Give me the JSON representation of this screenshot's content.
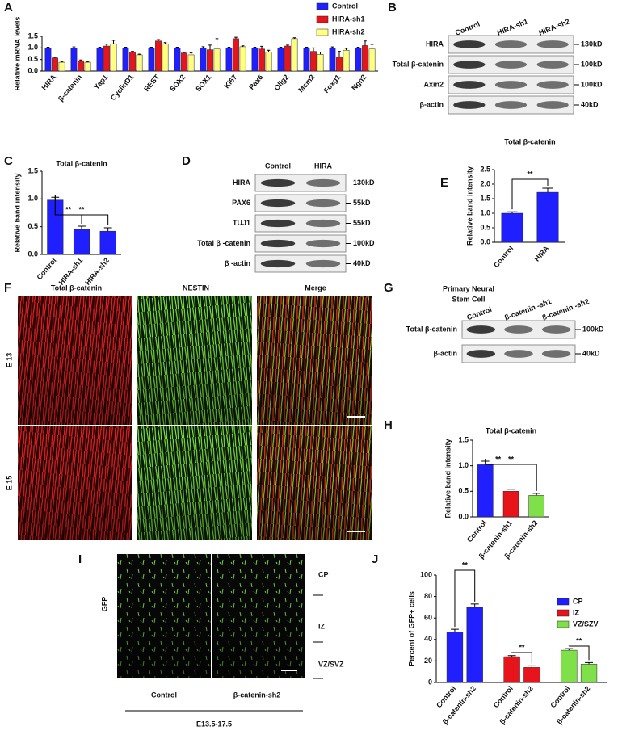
{
  "chart_data": [
    {
      "type": "bar",
      "ylabel": "Relative mRNA levels",
      "categories": [
        "HIRA",
        "β-catenin",
        "Yap1",
        "CyclinD1",
        "REST",
        "SOX2",
        "SOX1",
        "Ki67",
        "Pax6",
        "Olig2",
        "Mcm2",
        "Foxg1",
        "Ngn2"
      ],
      "series": [
        {
          "name": "Control",
          "color": "#1f1fff",
          "values": [
            1,
            1,
            1,
            1,
            1,
            1,
            1,
            1,
            1,
            1,
            1,
            1,
            1
          ],
          "errors": [
            0.03,
            0.04,
            0.03,
            0.03,
            0.03,
            0.03,
            0.05,
            0.03,
            0.03,
            0.03,
            0.03,
            0.04,
            0.03
          ]
        },
        {
          "name": "HIRA-sh1",
          "color": "#e8141c",
          "values": [
            0.57,
            0.45,
            1.08,
            0.82,
            1.3,
            0.78,
            0.92,
            1.4,
            0.95,
            1.08,
            0.85,
            0.6,
            1.1
          ],
          "errors": [
            0.03,
            0.03,
            0.08,
            0.03,
            0.06,
            0.03,
            0.2,
            0.06,
            0.12,
            0.04,
            0.15,
            0.25,
            0.2
          ]
        },
        {
          "name": "HIRA-sh2",
          "color": "#ffff80",
          "values": [
            0.38,
            0.38,
            1.18,
            0.7,
            1.18,
            0.7,
            0.95,
            1.05,
            0.82,
            1.4,
            0.72,
            0.9,
            0.95
          ],
          "errors": [
            0.03,
            0.03,
            0.15,
            0.03,
            0.05,
            0.08,
            0.45,
            0.04,
            0.08,
            0.04,
            0.1,
            0.08,
            0.2
          ]
        }
      ],
      "ylim": [
        0,
        1.5
      ],
      "yticks": [
        {
          "value": 0,
          "label": "0.0"
        },
        {
          "value": 0.5,
          "label": "0.5"
        },
        {
          "value": 1,
          "label": "1.0"
        },
        {
          "value": 1.5,
          "label": "1.5"
        }
      ]
    },
    {
      "type": "bar",
      "title": "Total β-catenin",
      "ylabel": "Relative band intensity",
      "categories": [
        "Control",
        "HIRA-sh1",
        "HIRA-sh2"
      ],
      "values": [
        0.98,
        0.45,
        0.42
      ],
      "errors": [
        0.05,
        0.06,
        0.06
      ],
      "color": "#1f1fff",
      "ylim": [
        0,
        1.5
      ],
      "yticks": [
        {
          "value": 0,
          "label": "0.0"
        },
        {
          "value": 0.5,
          "label": "0.5"
        },
        {
          "value": 1,
          "label": "1.0"
        },
        {
          "value": 1.5,
          "label": "1.5"
        }
      ],
      "significance": [
        "**",
        "**"
      ]
    },
    {
      "type": "bar",
      "title": "Total β-catenin",
      "ylabel": "Relative band intensity",
      "categories": [
        "Control",
        "HIRA"
      ],
      "values": [
        1.0,
        1.72
      ],
      "errors": [
        0.05,
        0.14
      ],
      "color": "#1f1fff",
      "ylim": [
        0,
        2.5
      ],
      "yticks": [
        {
          "value": 0,
          "label": "0.0"
        },
        {
          "value": 0.5,
          "label": "0.5"
        },
        {
          "value": 1,
          "label": "1.0"
        },
        {
          "value": 1.5,
          "label": "1.5"
        },
        {
          "value": 2,
          "label": "2.0"
        },
        {
          "value": 2.5,
          "label": "2.5"
        }
      ],
      "significance": [
        "**"
      ]
    },
    {
      "type": "bar",
      "title": "Total β-catenin",
      "ylabel": "Relative band intensity",
      "categories": [
        "Control",
        "β-catenin-sh1",
        "β-catenin-sh2"
      ],
      "values": [
        1.02,
        0.5,
        0.42
      ],
      "errors": [
        0.07,
        0.04,
        0.04
      ],
      "colors": [
        "#1f1fff",
        "#e8141c",
        "#7fe04a"
      ],
      "ylim": [
        0,
        1.5
      ],
      "yticks": [
        {
          "value": 0,
          "label": "0.0"
        },
        {
          "value": 0.5,
          "label": "0.5"
        },
        {
          "value": 1,
          "label": "1.0"
        },
        {
          "value": 1.5,
          "label": "1.5"
        }
      ],
      "significance": [
        "**",
        "**"
      ]
    },
    {
      "type": "bar",
      "ylabel": "Percent of GFP+ cells",
      "categories": [
        "Control",
        "β-catenin-sh2"
      ],
      "series": [
        {
          "name": "CP",
          "color": "#1f1fff",
          "values": [
            47,
            70
          ],
          "errors": [
            2.5,
            3
          ]
        },
        {
          "name": "IZ",
          "color": "#e8141c",
          "values": [
            24,
            14
          ],
          "errors": [
            1,
            1.5
          ]
        },
        {
          "name": "VZ/SZV",
          "color": "#7fe04a",
          "values": [
            30,
            17
          ],
          "errors": [
            1.5,
            1.5
          ]
        }
      ],
      "ylim": [
        0,
        100
      ],
      "yticks": [
        0,
        20,
        40,
        60,
        80,
        100
      ],
      "significance": [
        "**",
        "**",
        "**"
      ]
    }
  ],
  "western_blots": [
    {
      "lanes": [
        "Control",
        "HIRA-sh1",
        "HIRA-sh2"
      ],
      "rows": [
        {
          "label": "HIRA",
          "marker": "130kD"
        },
        {
          "label": "Total β-catenin",
          "marker": "100kD"
        },
        {
          "label": "Axin2",
          "marker": "100kD"
        },
        {
          "label": "β-actin",
          "marker": "40kD"
        }
      ]
    },
    {
      "lanes": [
        "Control",
        "HIRA"
      ],
      "rows": [
        {
          "label": "HIRA",
          "marker": "130kD"
        },
        {
          "label": "PAX6",
          "marker": "55kD"
        },
        {
          "label": "TUJ1",
          "marker": "55kD"
        },
        {
          "label": "Total  β -catenin",
          "marker": "100kD"
        },
        {
          "label": "β -actin",
          "marker": "40kD"
        }
      ]
    },
    {
      "title_lines": [
        "Primary Neural",
        "Stem Cell"
      ],
      "lanes": [
        "Control",
        "β-catenin -sh1",
        "β-catenin -sh2"
      ],
      "rows": [
        {
          "label": "Total  β-catenin",
          "marker": "100kD"
        },
        {
          "label": "β-actin",
          "marker": "40kD"
        }
      ]
    }
  ],
  "immunostaining": {
    "columns": [
      "Total  β-catenin",
      "NESTIN",
      "Merge"
    ],
    "rows": [
      "E 13",
      "E 15"
    ]
  },
  "electroporation": {
    "channel": "GFP",
    "columns": [
      "Control",
      "β-catenin-sh2"
    ],
    "zones": [
      "CP",
      "IZ",
      "VZ/SVZ"
    ],
    "stage": "E13.5-17.5"
  },
  "panel_letters": [
    "A",
    "B",
    "C",
    "D",
    "E",
    "F",
    "G",
    "H",
    "I",
    "J"
  ]
}
